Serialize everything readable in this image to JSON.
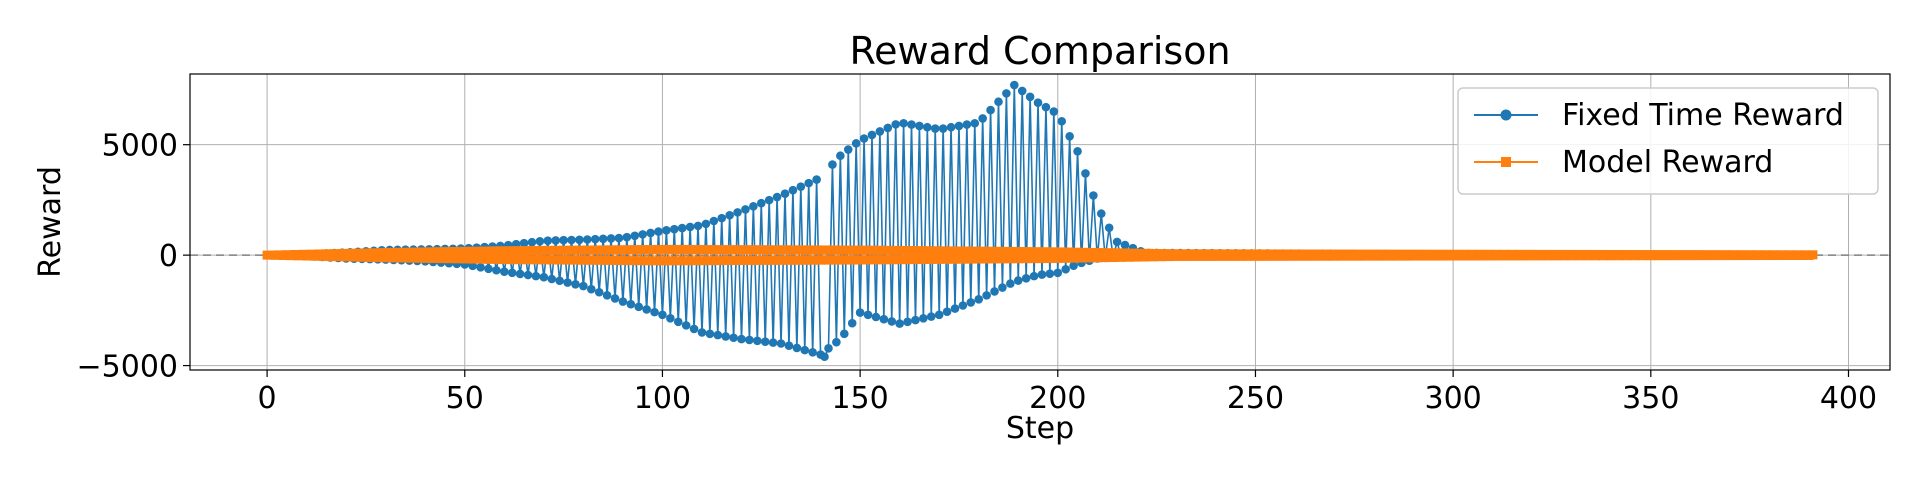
{
  "chart_data": {
    "type": "line",
    "title": "Reward Comparison",
    "xlabel": "Step",
    "ylabel": "Reward",
    "xlim": [
      -19.5,
      410.5
    ],
    "ylim": [
      -5200,
      8200
    ],
    "xticks": [
      0,
      50,
      100,
      150,
      200,
      250,
      300,
      350,
      400
    ],
    "yticks": [
      -5000,
      0,
      5000
    ],
    "ytick_labels": [
      "−5000",
      "0",
      "5000"
    ],
    "grid": true,
    "legend_position": "top-right",
    "reference_line_y": 0,
    "series": [
      {
        "name": "Fixed Time Reward",
        "color": "#1f77b4",
        "marker": "circle",
        "anchors": [
          [
            0,
            0,
            0
          ],
          [
            10,
            30,
            -40
          ],
          [
            20,
            120,
            -150
          ],
          [
            30,
            230,
            -200
          ],
          [
            40,
            260,
            -280
          ],
          [
            50,
            300,
            -420
          ],
          [
            60,
            430,
            -750
          ],
          [
            70,
            650,
            -1000
          ],
          [
            80,
            700,
            -1400
          ],
          [
            90,
            780,
            -2100
          ],
          [
            100,
            1100,
            -2700
          ],
          [
            110,
            1350,
            -3500
          ],
          [
            120,
            2000,
            -3800
          ],
          [
            130,
            2700,
            -4000
          ],
          [
            140,
            3500,
            -4500
          ],
          [
            145,
            4500,
            -3800
          ],
          [
            150,
            5200,
            -2600
          ],
          [
            160,
            6000,
            -3100
          ],
          [
            170,
            5700,
            -2700
          ],
          [
            180,
            6000,
            -2000
          ],
          [
            189,
            7700,
            -1200
          ],
          [
            195,
            6900,
            -900
          ],
          [
            200,
            6400,
            -800
          ],
          [
            205,
            4700,
            -400
          ],
          [
            210,
            2200,
            -150
          ],
          [
            215,
            600,
            -80
          ],
          [
            222,
            100,
            -30
          ],
          [
            235,
            90,
            -40
          ],
          [
            260,
            70,
            -30
          ],
          [
            300,
            40,
            -20
          ],
          [
            391,
            10,
            -10
          ]
        ]
      },
      {
        "name": "Model Reward",
        "color": "#ff7f0e",
        "marker": "square",
        "anchors": [
          [
            0,
            0,
            0
          ],
          [
            30,
            120,
            -120
          ],
          [
            60,
            200,
            -200
          ],
          [
            100,
            260,
            -260
          ],
          [
            150,
            230,
            -220
          ],
          [
            200,
            150,
            -150
          ],
          [
            230,
            60,
            -60
          ],
          [
            391,
            15,
            -15
          ]
        ]
      }
    ],
    "n_steps": 392
  }
}
